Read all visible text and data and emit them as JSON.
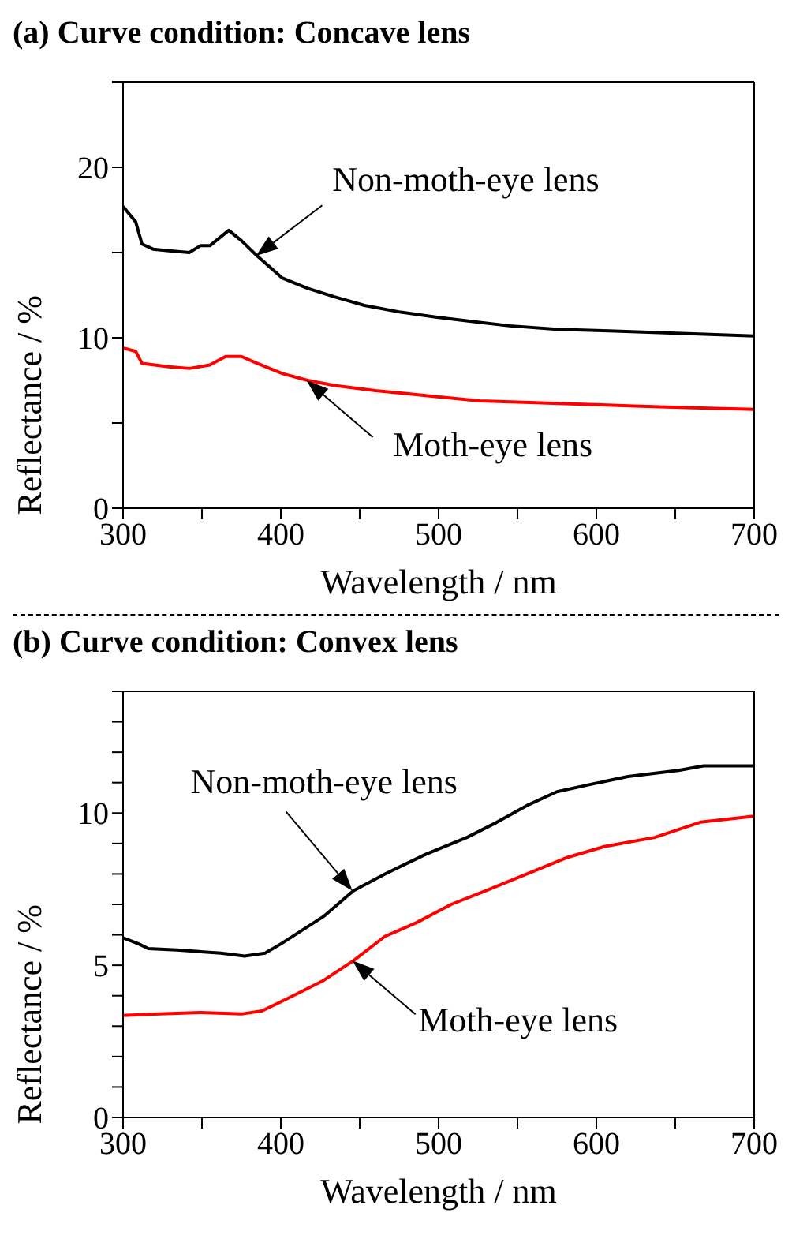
{
  "chart_data": [
    {
      "type": "line",
      "title": "(a) Curve condition: Concave lens",
      "xlabel": "Wavelength / nm",
      "ylabel": "Reflectance / %",
      "xlim": [
        300,
        700
      ],
      "xticks": [
        300,
        {
          "value": 350,
          "label": null
        },
        400,
        {
          "value": 450,
          "label": null
        },
        500,
        {
          "value": 550,
          "label": null
        },
        600,
        {
          "value": 650,
          "label": null
        },
        700
      ],
      "ylim": [
        0,
        25
      ],
      "yticks": [
        0,
        {
          "value": 5,
          "label": null
        },
        10,
        {
          "value": 15,
          "label": null
        },
        20,
        {
          "value": 25,
          "label": null
        }
      ],
      "series": [
        {
          "color": "#000000",
          "x": [
            300,
            308,
            312,
            319,
            329,
            342,
            349,
            355,
            367,
            375,
            385,
            401,
            417,
            434,
            453,
            476,
            499,
            526,
            545,
            575,
            608,
            640,
            672,
            700
          ],
          "values": [
            17.7,
            16.8,
            15.5,
            15.2,
            15.1,
            15.0,
            15.4,
            15.4,
            16.3,
            15.7,
            14.8,
            13.5,
            12.9,
            12.4,
            11.9,
            11.5,
            11.2,
            10.9,
            10.7,
            10.5,
            10.4,
            10.3,
            10.2,
            10.1
          ]
        },
        {
          "color": "#ff0000",
          "x": [
            300,
            308,
            312,
            329,
            342,
            355,
            365,
            375,
            385,
            401,
            417,
            434,
            460,
            493,
            526,
            558,
            591,
            624,
            657,
            700
          ],
          "values": [
            9.4,
            9.2,
            8.5,
            8.3,
            8.2,
            8.4,
            8.9,
            8.9,
            8.5,
            7.9,
            7.5,
            7.2,
            6.9,
            6.6,
            6.3,
            6.2,
            6.1,
            6.0,
            5.9,
            5.8
          ]
        }
      ],
      "annotations": [
        {
          "text": "Non-moth-eye lens",
          "x": 385,
          "y": 14.8
        },
        {
          "text": "Moth-eye lens",
          "x": 417,
          "y": 7.5
        }
      ]
    },
    {
      "type": "line",
      "title": "(b) Curve condition: Convex lens",
      "xlabel": "Wavelength / nm",
      "ylabel": "Reflectance / %",
      "xlim": [
        300,
        700
      ],
      "xticks": [
        300,
        {
          "value": 350,
          "label": null
        },
        400,
        {
          "value": 450,
          "label": null
        },
        500,
        {
          "value": 550,
          "label": null
        },
        600,
        {
          "value": 650,
          "label": null
        },
        700
      ],
      "ylim": [
        0,
        14
      ],
      "yticks": [
        0,
        {
          "value": 1,
          "label": null
        },
        {
          "value": 2,
          "label": null
        },
        {
          "value": 3,
          "label": null
        },
        {
          "value": 4,
          "label": null
        },
        5,
        {
          "value": 6,
          "label": null
        },
        {
          "value": 7,
          "label": null
        },
        {
          "value": 8,
          "label": null
        },
        {
          "value": 9,
          "label": null
        },
        10,
        {
          "value": 11,
          "label": null
        },
        {
          "value": 12,
          "label": null
        },
        {
          "value": 13,
          "label": null
        },
        {
          "value": 14,
          "label": null
        }
      ],
      "series": [
        {
          "color": "#000000",
          "x": [
            300,
            310,
            316,
            334,
            362,
            377,
            390,
            400,
            427,
            446,
            466,
            492,
            518,
            537,
            556,
            575,
            597,
            620,
            652,
            668,
            700
          ],
          "values": [
            5.9,
            5.7,
            5.55,
            5.5,
            5.4,
            5.3,
            5.4,
            5.7,
            6.6,
            7.45,
            8.0,
            8.65,
            9.2,
            9.7,
            10.25,
            10.7,
            10.95,
            11.2,
            11.4,
            11.55,
            11.55
          ]
        },
        {
          "color": "#ff0000",
          "x": [
            300,
            323,
            349,
            375,
            388,
            404,
            427,
            446,
            466,
            486,
            508,
            530,
            556,
            582,
            605,
            637,
            666,
            700
          ],
          "values": [
            3.35,
            3.4,
            3.45,
            3.4,
            3.5,
            3.9,
            4.5,
            5.15,
            5.95,
            6.4,
            7.0,
            7.45,
            8.0,
            8.55,
            8.9,
            9.2,
            9.7,
            9.9
          ]
        }
      ],
      "annotations": [
        {
          "text": "Non-moth-eye lens",
          "x": 446,
          "y": 7.45
        },
        {
          "text": "Moth-eye lens",
          "x": 446,
          "y": 5.15
        }
      ]
    }
  ]
}
